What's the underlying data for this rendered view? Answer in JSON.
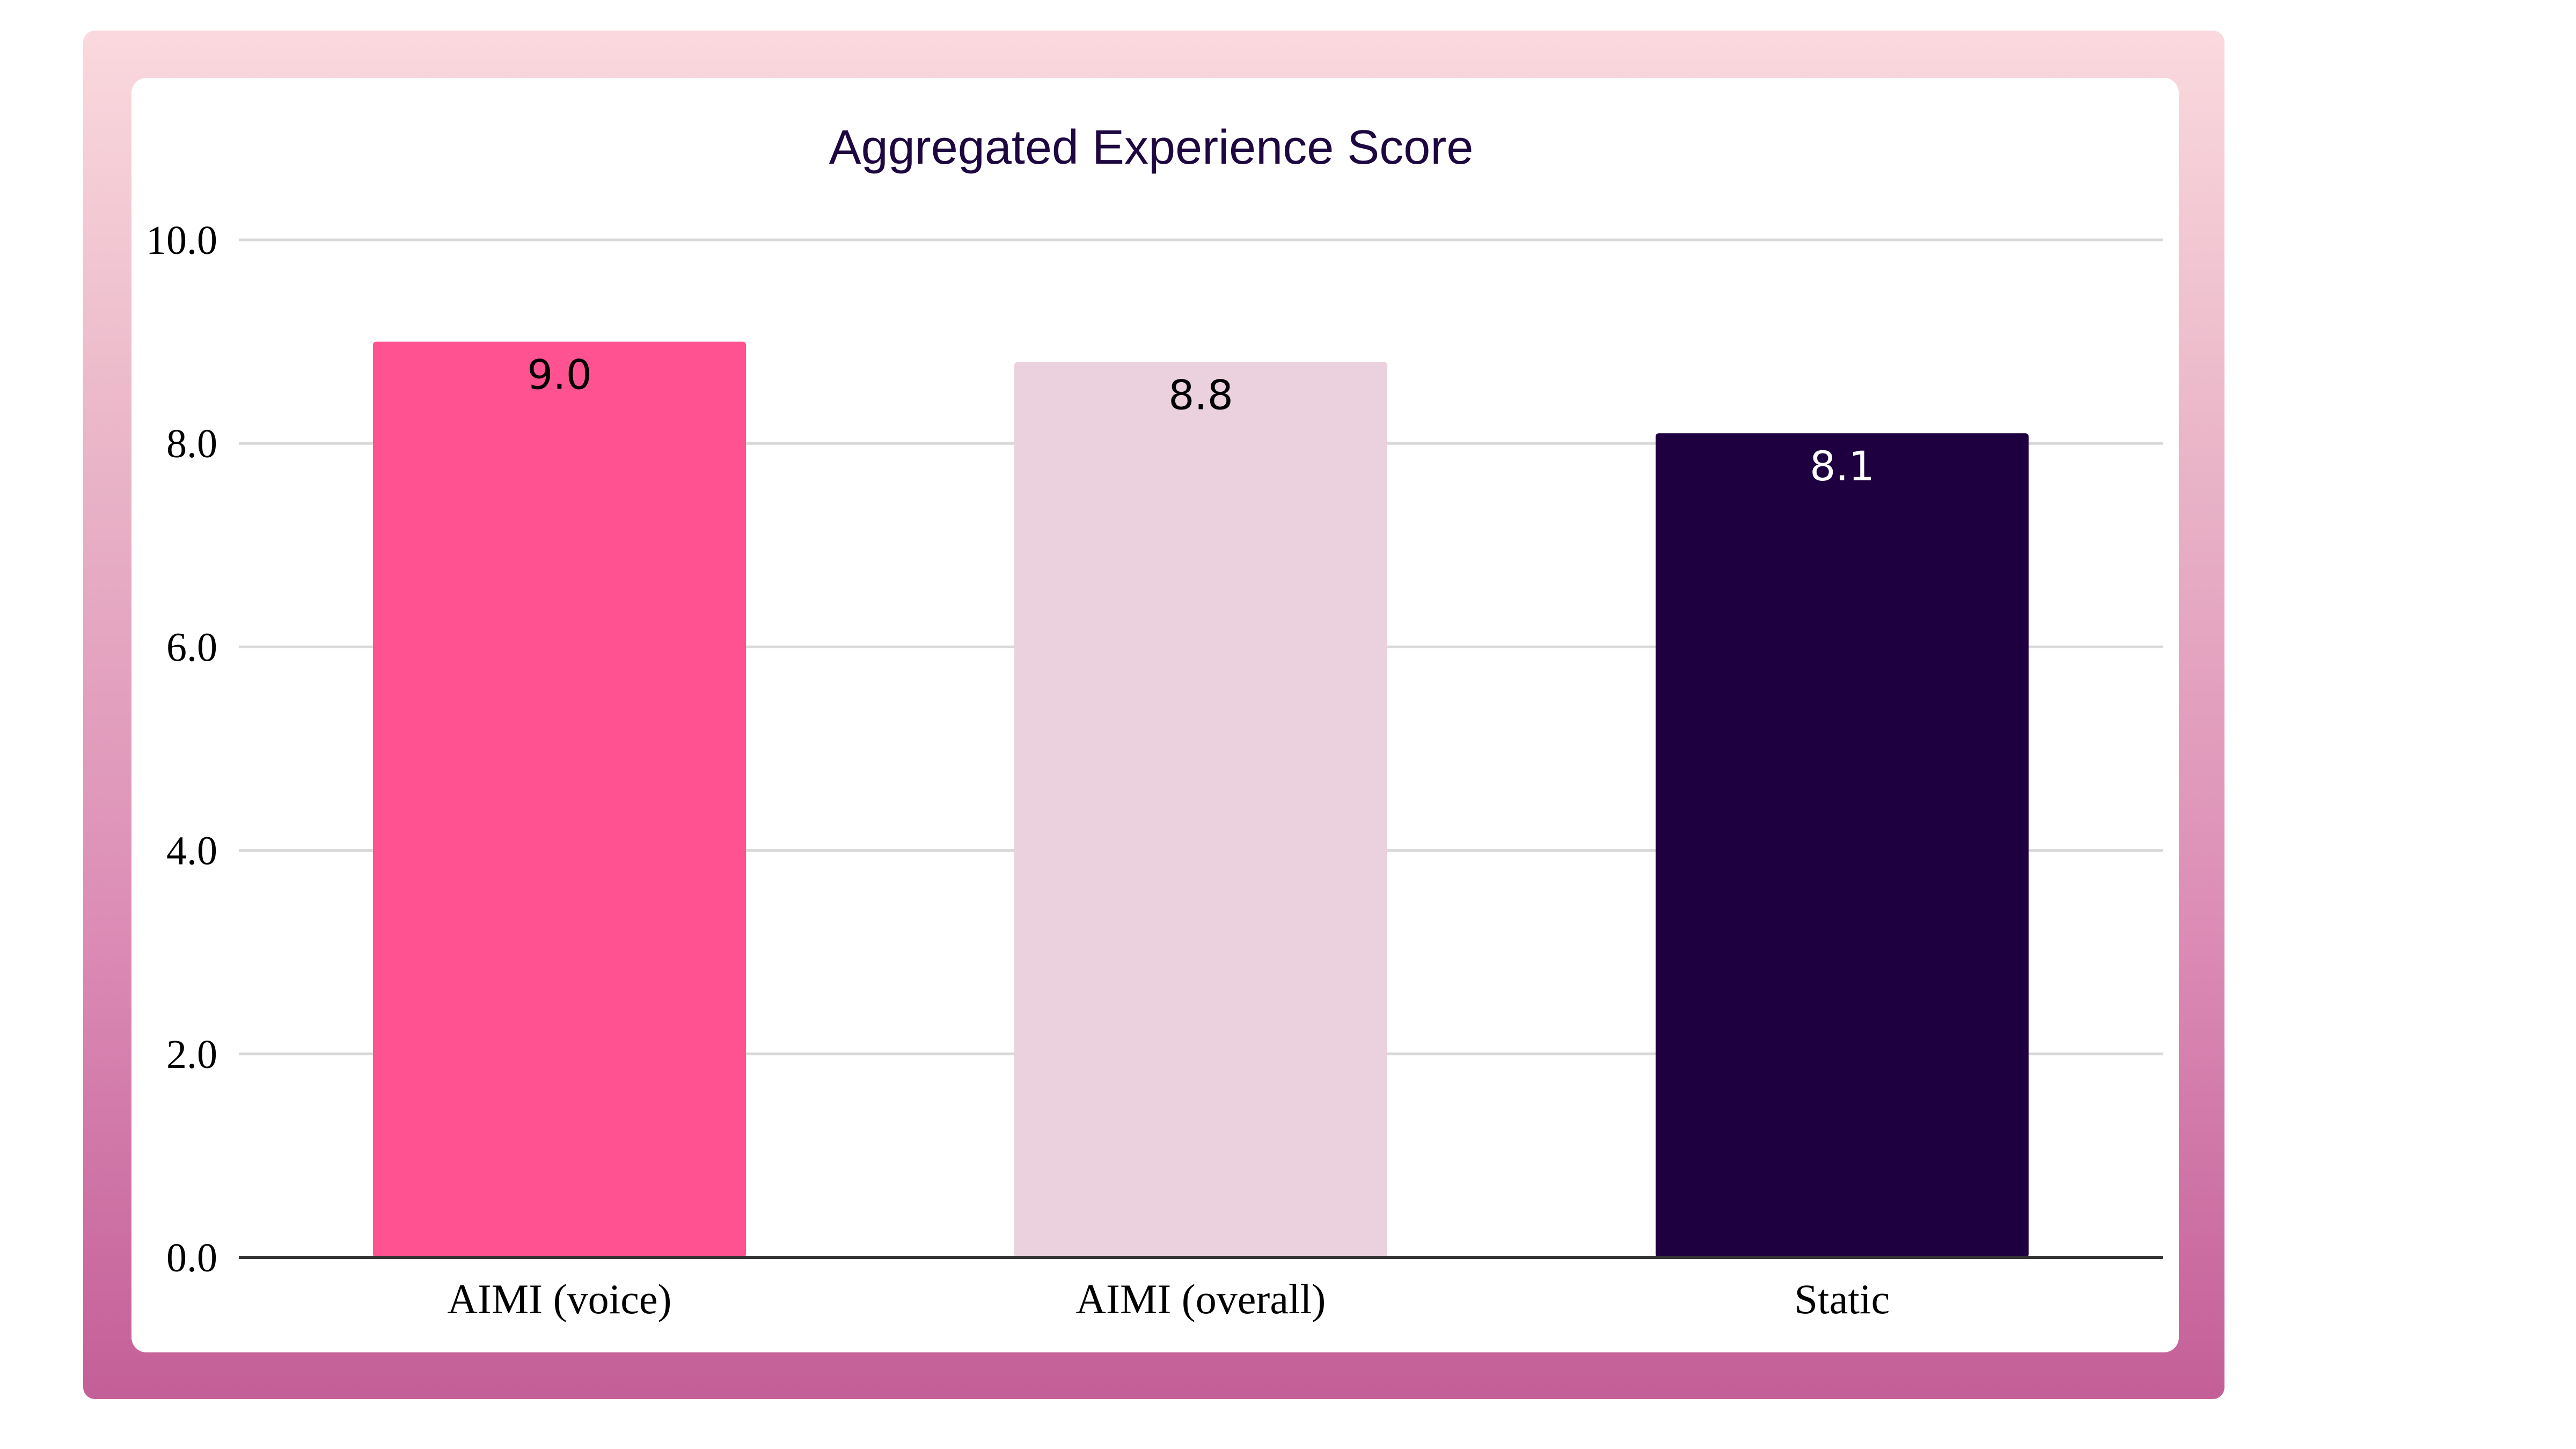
{
  "chart_data": {
    "type": "bar",
    "title": "Aggregated Experience Score",
    "categories": [
      "AIMI (voice)",
      "AIMI (overall)",
      "Static"
    ],
    "values": [
      9.0,
      8.8,
      8.1
    ],
    "value_labels": [
      "9.0",
      "8.8",
      "8.1"
    ],
    "bar_colors": [
      "#ff5391",
      "#ebd1de",
      "#1e0040"
    ],
    "label_colors": [
      "#000000",
      "#000000",
      "#ffffff"
    ],
    "xlabel": "",
    "ylabel": "",
    "ylim": [
      0,
      10
    ],
    "yticks": [
      0,
      2,
      4,
      6,
      8,
      10
    ],
    "ytick_labels": [
      "0.0",
      "2.0",
      "4.0",
      "6.0",
      "8.0",
      "10.0"
    ],
    "grid": true,
    "legend": "none"
  },
  "colors": {
    "grid": "#d9d9d9",
    "axis": "#333333",
    "title": "#1e0741"
  }
}
